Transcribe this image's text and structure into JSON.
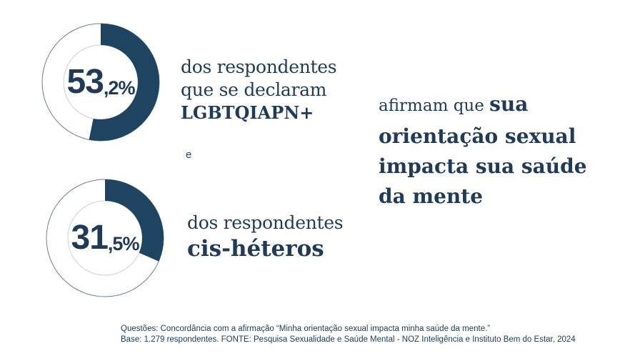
{
  "chart_data": {
    "type": "donut",
    "series": [
      {
        "value_main": "53",
        "value_decimal": ",2%",
        "value": 53.2,
        "desc_light": [
          "dos respondentes",
          "que se declaram"
        ],
        "desc_bold": "LGBTQIAPN+"
      },
      {
        "value_main": "31",
        "value_decimal": ",5%",
        "value": 31.5,
        "desc_light": [
          "dos respondentes"
        ],
        "desc_bold": "cis-héteros"
      }
    ],
    "connector": "e",
    "statement": {
      "lead_light": "afirmam que ",
      "lead_bold": "sua",
      "lines": [
        "orientação sexual",
        "impacta sua saúde",
        "da mente"
      ]
    }
  },
  "footnote": {
    "line1": "Questões: Concordância com a afirmação “Minha orientação sexual impacta minha saúde da mente.”",
    "line2": "Base: 1.279 respondentes. FONTE: Pesquisa Sexualidade e Saúde Mental - NOZ Inteligência e Instituto Bem do Estar, 2024"
  },
  "colors": {
    "accent": "#1f4461",
    "track_outer": "#6e8296",
    "track_inner": "#c9d2db",
    "text": "#1f3b57"
  }
}
